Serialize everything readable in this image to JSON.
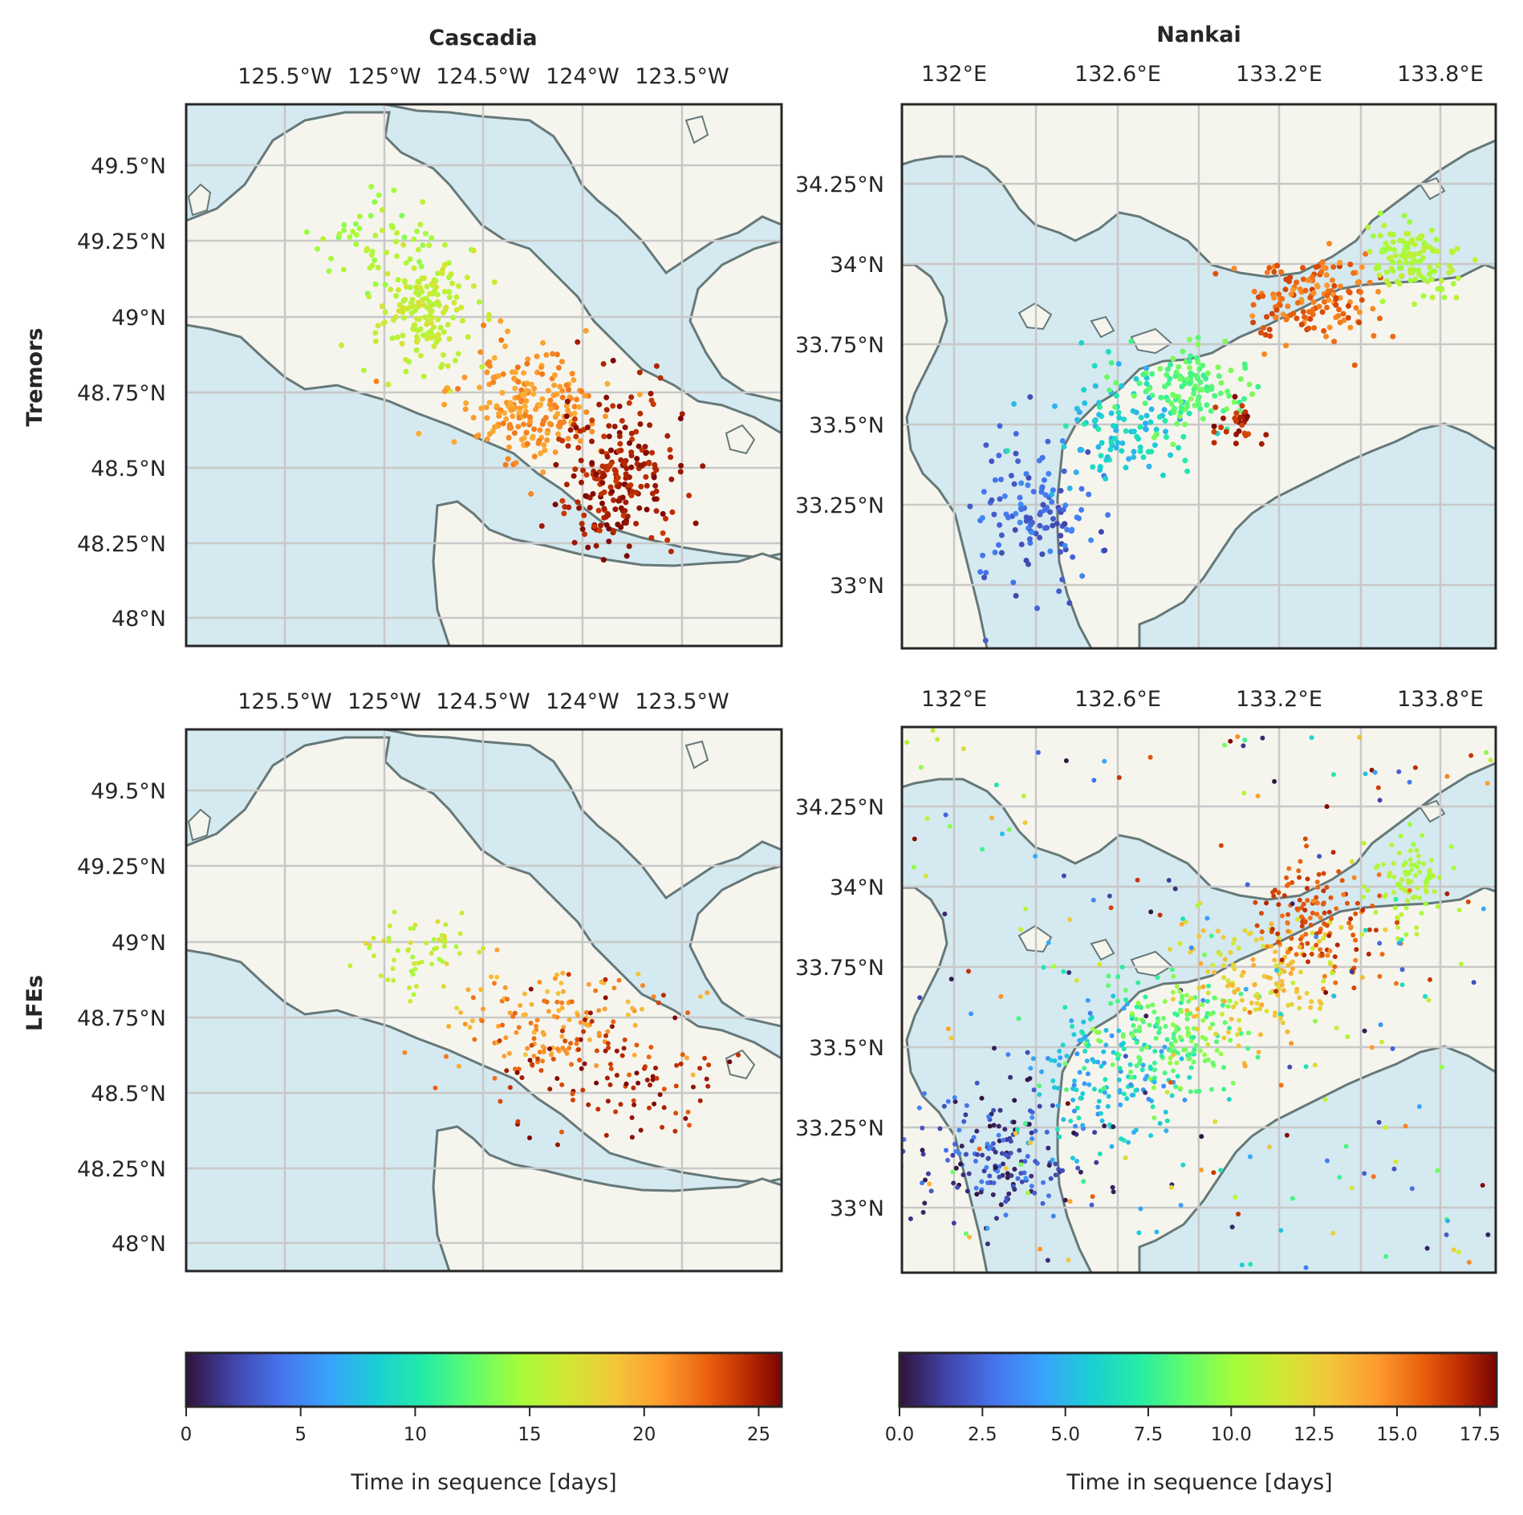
{
  "columns": [
    {
      "title": "Cascadia",
      "xticks": [
        "125.5°W",
        "125°W",
        "124.5°W",
        "124°W",
        "123.5°W"
      ],
      "yticks": [
        "49.5°N",
        "49.25°N",
        "49°N",
        "48.75°N",
        "48.5°N",
        "48.25°N",
        "48°N"
      ]
    },
    {
      "title": "Nankai",
      "xticks": [
        "132°E",
        "132.6°E",
        "133.2°E",
        "133.8°E"
      ],
      "yticks": [
        "34.25°N",
        "34°N",
        "33.75°N",
        "33.5°N",
        "33.25°N",
        "33°N"
      ]
    }
  ],
  "rows": [
    {
      "label": "Tremors"
    },
    {
      "label": "LFEs"
    }
  ],
  "colorbars": [
    {
      "label": "Time in sequence [days]",
      "ticks": [
        "0",
        "5",
        "10",
        "15",
        "20",
        "25"
      ],
      "range": [
        0,
        26
      ]
    },
    {
      "label": "Time in sequence [days]",
      "ticks": [
        "0.0",
        "2.5",
        "5.0",
        "7.5",
        "10.0",
        "12.5",
        "15.0",
        "17.5"
      ],
      "range": [
        0,
        18
      ]
    }
  ],
  "colormap": "turbo",
  "colors": {
    "land": "#f5f5ee",
    "water": "#d5e9f0",
    "coast": "#667878",
    "grid": "#c8c8c8",
    "frame": "#262626"
  }
}
